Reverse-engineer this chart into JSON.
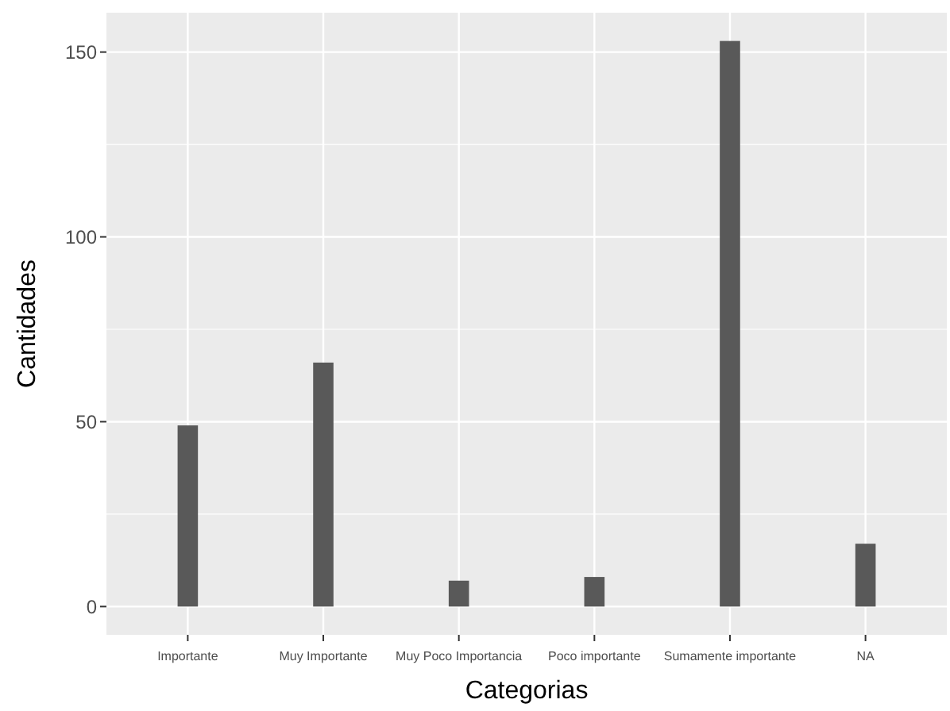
{
  "chart_data": {
    "type": "bar",
    "xlabel": "Categorias",
    "ylabel": "Cantidades",
    "categories": [
      "Importante",
      "Muy Importante",
      "Muy Poco Importancia",
      "Poco importante",
      "Sumamente importante",
      "NA"
    ],
    "values": [
      49,
      66,
      7,
      8,
      153,
      17
    ],
    "color": "#595959",
    "ylim": [
      -7.65,
      160.65
    ],
    "yticks": [
      0,
      50,
      100,
      150
    ],
    "grid": true
  }
}
